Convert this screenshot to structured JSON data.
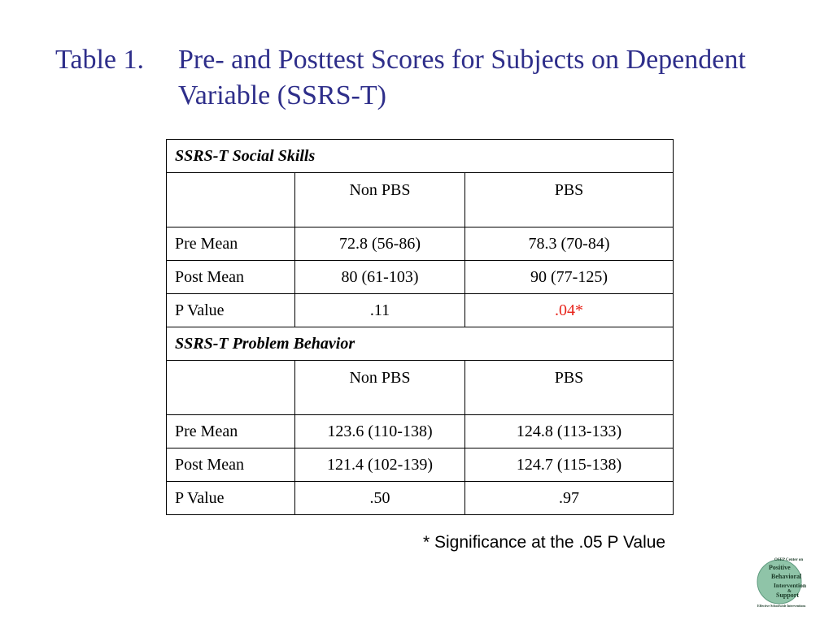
{
  "title": {
    "number": "Table 1.",
    "text": "Pre- and Posttest Scores for Subjects on Dependent Variable (SSRS-T)"
  },
  "table": {
    "sections": [
      {
        "heading": "SSRS-T Social Skills",
        "columns": [
          "Non PBS",
          "PBS"
        ],
        "rows": [
          {
            "label": "Pre Mean",
            "non_pbs": "72.8 (56-86)",
            "pbs": "78.3 (70-84)"
          },
          {
            "label": "Post Mean",
            "non_pbs": "80 (61-103)",
            "pbs": "90 (77-125)"
          },
          {
            "label": "P Value",
            "non_pbs": ".11",
            "pbs": ".04*"
          }
        ]
      },
      {
        "heading": "SSRS-T Problem Behavior",
        "columns": [
          "Non PBS",
          "PBS"
        ],
        "rows": [
          {
            "label": "Pre Mean",
            "non_pbs": "123.6 (110-138)",
            "pbs": "124.8 (113-133)"
          },
          {
            "label": "Post Mean",
            "non_pbs": "121.4 (102-139)",
            "pbs": "124.7 (115-138)"
          },
          {
            "label": "P Value",
            "non_pbs": ".50",
            "pbs": ".97"
          }
        ]
      }
    ]
  },
  "footnote": "* Significance at the .05 P Value",
  "colors": {
    "title": "#2e2e8a",
    "significant": "#e8231a",
    "logo_circle": "#8fc4a8"
  },
  "logo": {
    "icon": "pbis-logo-icon",
    "top_text": "OSEP Center on",
    "lines": [
      "Positive",
      "Behavioral",
      "Intervention",
      "&",
      "Support"
    ],
    "bottom_text": "Effective Schoolwide Interventions"
  }
}
